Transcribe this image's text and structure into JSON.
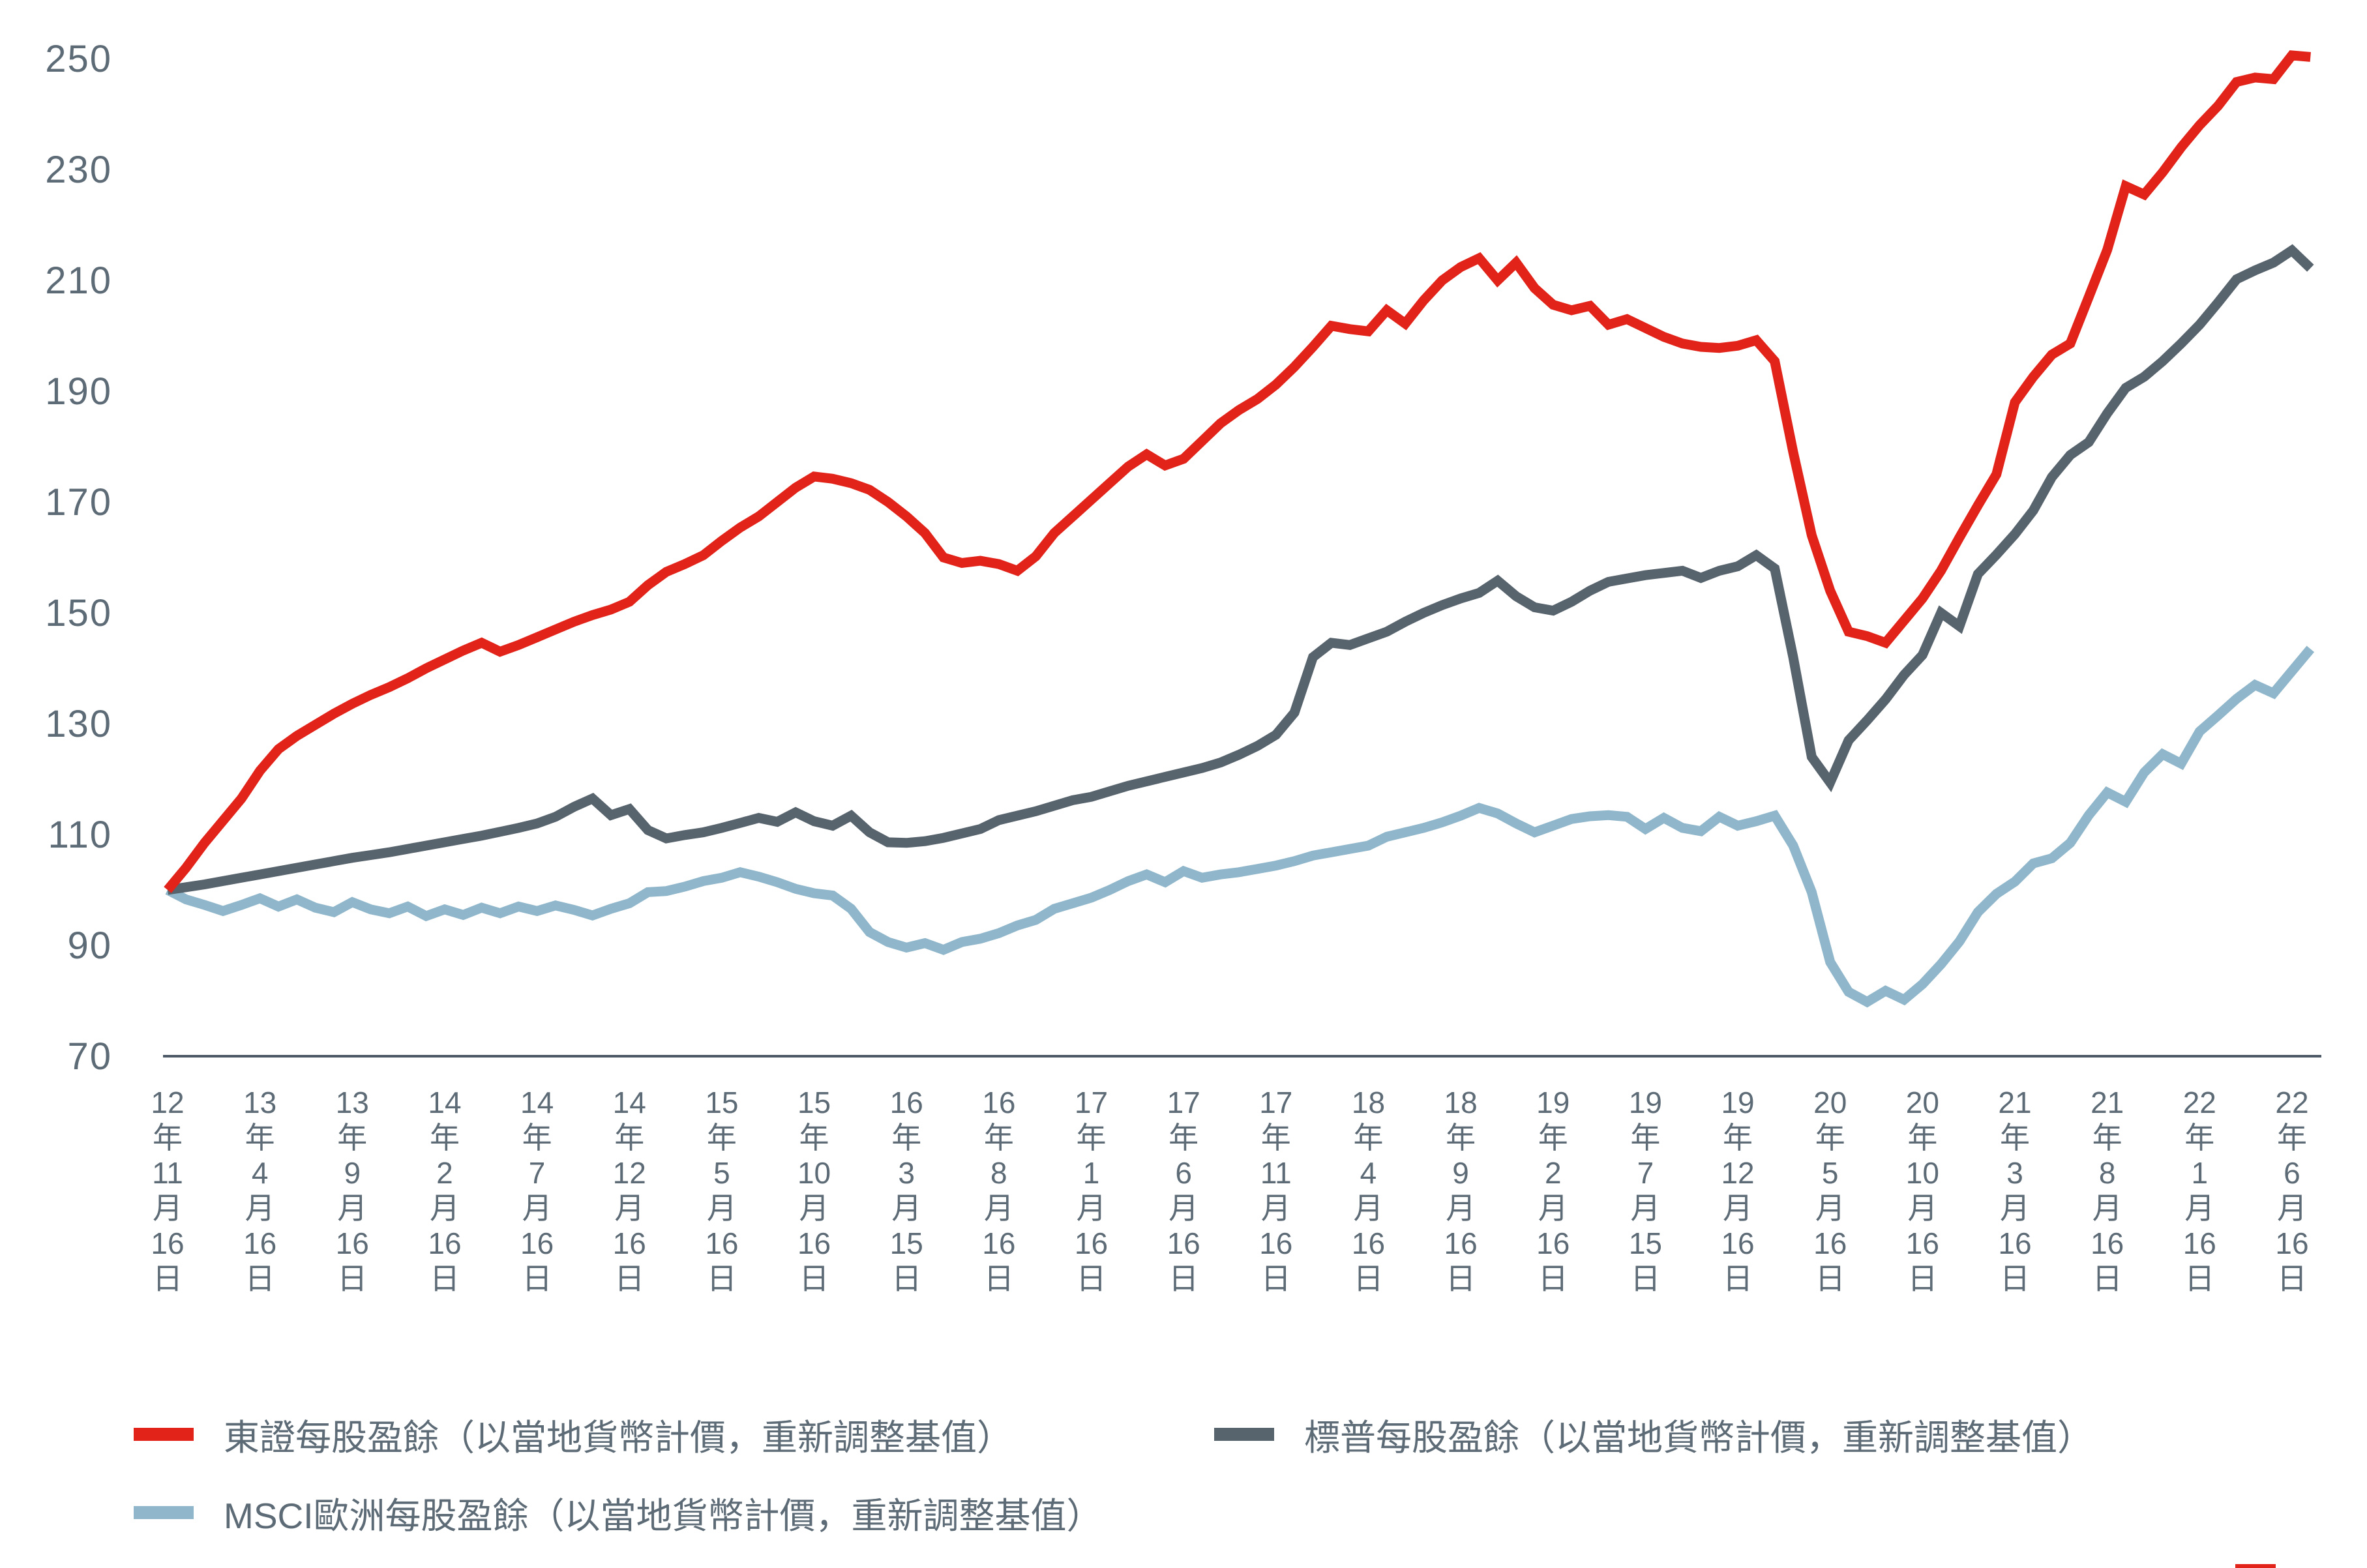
{
  "chart_data": {
    "type": "line",
    "title": "",
    "grid": false,
    "y_axis": {
      "ticks": [
        250,
        230,
        210,
        190,
        170,
        150,
        130,
        110,
        90,
        70
      ],
      "ylim": [
        70,
        250
      ],
      "baseline_value": 70
    },
    "x_axis": {
      "labels": [
        "12年11月16日",
        "13年4月16日",
        "13年9月16日",
        "14年2月16日",
        "14年7月16日",
        "14年12月16日",
        "15年5月16日",
        "15年10月16日",
        "16年3月15日",
        "16年8月16日",
        "17年1月16日",
        "17年6月16日",
        "17年11月16日",
        "18年4月16日",
        "18年9月16日",
        "19年2月16日",
        "19年7月15日",
        "19年12月16日",
        "20年5月16日",
        "20年10月16日",
        "21年3月16日",
        "21年8月16日",
        "22年1月16日",
        "22年6月16日"
      ],
      "months_between_labels": 5,
      "points_per_series": 117,
      "first_point_label": "12年11月16日"
    },
    "series": [
      {
        "key": "msci_europe",
        "name": "MSCI歐洲每股盈餘（以當地貨幣計價，重新調整基值）",
        "color": "#8fb6ca",
        "values": [
          100,
          98.3,
          97.3,
          96.2,
          97.3,
          98.5,
          97,
          98.3,
          96.8,
          96,
          97.8,
          96.5,
          95.8,
          97,
          95.3,
          96.5,
          95.5,
          96.8,
          95.8,
          97,
          96.2,
          97.2,
          96.4,
          95.4,
          96.6,
          97.6,
          99.6,
          99.8,
          100.6,
          101.6,
          102.2,
          103.2,
          102.4,
          101.4,
          100.2,
          99.4,
          99,
          96.6,
          92.4,
          90.6,
          89.6,
          90.4,
          89.2,
          90.6,
          91.2,
          92.2,
          93.6,
          94.6,
          96.6,
          97.6,
          98.6,
          100,
          101.6,
          102.8,
          101.4,
          103.4,
          102.2,
          102.8,
          103.2,
          103.8,
          104.4,
          105.2,
          106.2,
          106.8,
          107.4,
          108,
          109.6,
          110.4,
          111.2,
          112.2,
          113.4,
          114.8,
          113.8,
          112,
          110.4,
          111.6,
          112.8,
          113.3,
          113.5,
          113.2,
          111,
          113,
          111.2,
          110.6,
          113.2,
          111.6,
          112.4,
          113.4,
          108,
          99.6,
          87,
          81.6,
          79.8,
          81.8,
          80.2,
          83,
          86.6,
          90.7,
          96,
          99.3,
          101.5,
          104.8,
          105.7,
          108.5,
          113.5,
          117.6,
          115.9,
          121.2,
          124.5,
          122.8,
          128.6,
          131.5,
          134.5,
          137,
          135.5,
          139.5,
          143.5
        ]
      },
      {
        "key": "sp",
        "name": "標普每股盈餘（以當地貨幣計價，重新調整基值）",
        "color": "#57636d",
        "values": [
          100,
          100.5,
          101,
          101.6,
          102.2,
          102.8,
          103.4,
          104,
          104.6,
          105.2,
          105.8,
          106.3,
          106.8,
          107.4,
          108,
          108.6,
          109.2,
          109.8,
          110.5,
          111.2,
          112,
          113.2,
          115,
          116.5,
          113.5,
          114.6,
          110.8,
          109.3,
          109.9,
          110.4,
          111.2,
          112.1,
          113,
          112.3,
          114,
          112.4,
          111.6,
          113.4,
          110.4,
          108.6,
          108.5,
          108.8,
          109.4,
          110.2,
          111,
          112.6,
          113.4,
          114.2,
          115.2,
          116.2,
          116.8,
          117.8,
          118.8,
          119.6,
          120.4,
          121.2,
          122,
          123,
          124.4,
          126,
          128,
          132,
          142,
          144.6,
          144.2,
          145.4,
          146.6,
          148.4,
          150,
          151.4,
          152.6,
          153.6,
          155.8,
          153,
          151,
          150.4,
          152,
          154,
          155.6,
          156.2,
          156.8,
          157.2,
          157.6,
          156.3,
          157.6,
          158.4,
          160.4,
          158,
          142,
          124,
          119.4,
          127,
          130.6,
          134.4,
          138.8,
          142.4,
          150,
          147.6,
          157,
          160.5,
          164.2,
          168.5,
          174.5,
          178.5,
          180.8,
          186,
          190.6,
          192.6,
          195.4,
          198.6,
          202,
          206,
          210.2,
          211.8,
          213.2,
          215.4,
          212.2
        ]
      },
      {
        "key": "topix",
        "name": "東證每股盈餘（以當地貨幣計價，重新調整基值）",
        "color": "#e2231a",
        "values": [
          100,
          104,
          108.5,
          112.5,
          116.5,
          121.5,
          125.4,
          127.8,
          129.8,
          131.8,
          133.6,
          135.2,
          136.6,
          138.2,
          140,
          141.6,
          143.2,
          144.6,
          143,
          144.2,
          145.6,
          147,
          148.4,
          149.6,
          150.6,
          152,
          155,
          157.4,
          158.8,
          160.4,
          163,
          165.4,
          167.4,
          170,
          172.6,
          174.6,
          174.2,
          173.4,
          172.2,
          170,
          167.4,
          164.4,
          160,
          159,
          159.4,
          158.8,
          157.6,
          160.2,
          164.4,
          167.4,
          170.4,
          173.4,
          176.4,
          178.6,
          176.6,
          177.8,
          181,
          184.2,
          186.6,
          188.6,
          191.2,
          194.4,
          198,
          201.8,
          201.2,
          200.8,
          204.6,
          202.2,
          206.4,
          210,
          212.4,
          214,
          210,
          213.2,
          208.6,
          205.6,
          204.6,
          205.4,
          202,
          203,
          201.4,
          199.8,
          198.6,
          198,
          197.8,
          198.2,
          199.2,
          195.4,
          179,
          164,
          154,
          146.6,
          145.8,
          144.6,
          148.6,
          152.6,
          157.6,
          163.6,
          169.4,
          175,
          188,
          192.6,
          196.6,
          198.6,
          207,
          215.5,
          227,
          225.5,
          229.5,
          234,
          238,
          241.5,
          245.8,
          246.6,
          246.3,
          250.6,
          250.3
        ]
      }
    ],
    "legend_position": "bottom"
  },
  "legend": {
    "items": [
      {
        "label": "東證每股盈餘（以當地貨幣計價，重新調整基值）",
        "color": "#e2231a"
      },
      {
        "label": "標普每股盈餘（以當地貨幣計價，重新調整基值）",
        "color": "#57636d"
      },
      {
        "label": "MSCI歐洲每股盈餘（以當地貨幣計價，重新調整基值）",
        "color": "#8fb6ca"
      }
    ]
  },
  "ui": {
    "axis_color": "#4d5966",
    "text_color": "#5d6b77",
    "bottom_right_mark_color": "#e2231a"
  }
}
